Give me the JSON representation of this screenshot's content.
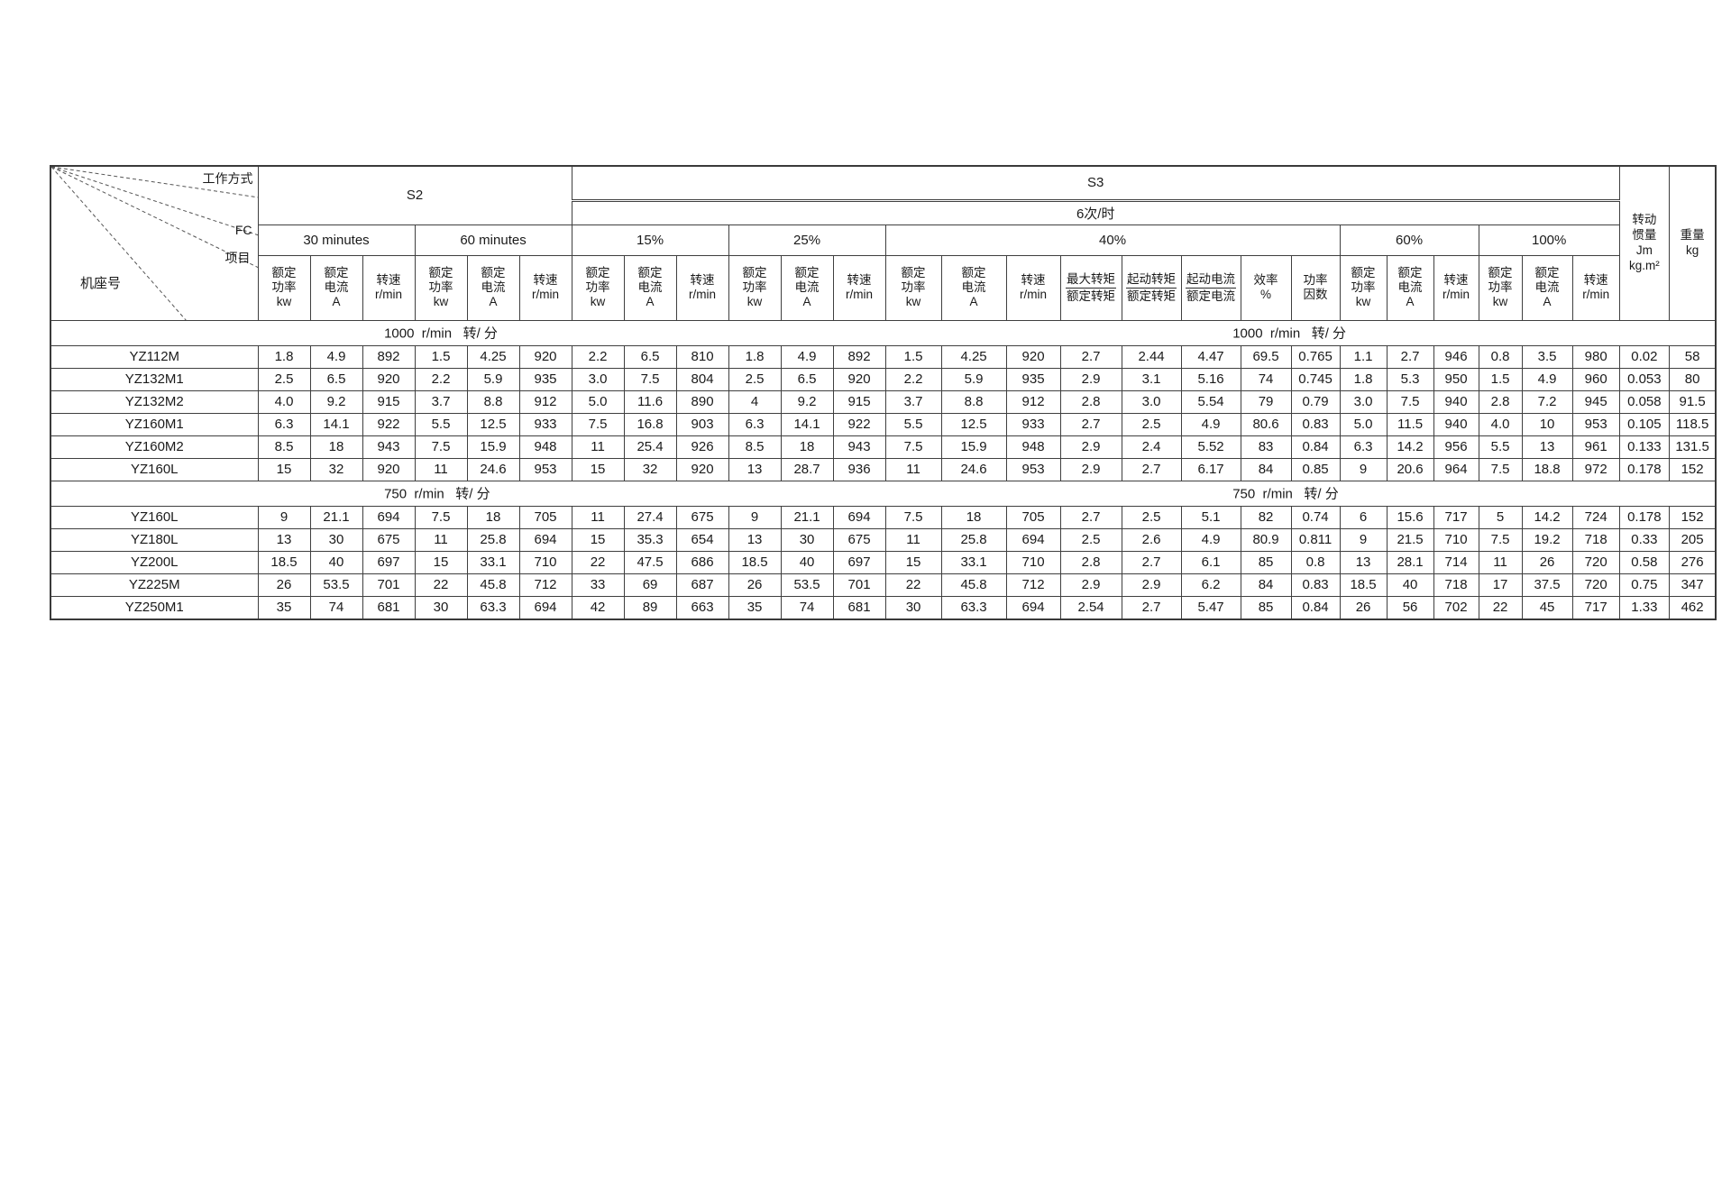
{
  "table": {
    "corner": {
      "work_mode": "工作方式",
      "fc": "FC",
      "item": "项目",
      "frame_no": "机座号"
    },
    "groups": {
      "s2": "S2",
      "s3": "S3",
      "s3_sub": "6次/时",
      "s2_30": "30  minutes",
      "s2_60": "60  minutes",
      "p15": "15%",
      "p25": "25%",
      "p40": "40%",
      "p60": "60%",
      "p100": "100%"
    },
    "col_headers": {
      "power": [
        "额定",
        "功率",
        "kw"
      ],
      "current": [
        "额定",
        "电流",
        "A"
      ],
      "speed": [
        "转速",
        "r/min"
      ],
      "tmax": {
        "num": "最大转矩",
        "den": "额定转矩"
      },
      "tstart": {
        "num": "起动转矩",
        "den": "额定转矩"
      },
      "istart": {
        "num": "起动电流",
        "den": "额定电流"
      },
      "eff": [
        "效率",
        "%"
      ],
      "pf": [
        "功率",
        "因数"
      ],
      "inertia": [
        "转动",
        "惯量",
        "Jm",
        "kg.m²"
      ],
      "weight": [
        "重量",
        "kg"
      ]
    },
    "sections": [
      {
        "label": "1000  r/min   转/ 分",
        "rows": [
          {
            "model": "YZ112M",
            "values": [
              "1.8",
              "4.9",
              "892",
              "1.5",
              "4.25",
              "920",
              "2.2",
              "6.5",
              "810",
              "1.8",
              "4.9",
              "892",
              "1.5",
              "4.25",
              "920",
              "2.7",
              "2.44",
              "4.47",
              "69.5",
              "0.765",
              "1.1",
              "2.7",
              "946",
              "0.8",
              "3.5",
              "980",
              "0.02",
              "58"
            ]
          },
          {
            "model": "YZ132M1",
            "values": [
              "2.5",
              "6.5",
              "920",
              "2.2",
              "5.9",
              "935",
              "3.0",
              "7.5",
              "804",
              "2.5",
              "6.5",
              "920",
              "2.2",
              "5.9",
              "935",
              "2.9",
              "3.1",
              "5.16",
              "74",
              "0.745",
              "1.8",
              "5.3",
              "950",
              "1.5",
              "4.9",
              "960",
              "0.053",
              "80"
            ]
          },
          {
            "model": "YZ132M2",
            "values": [
              "4.0",
              "9.2",
              "915",
              "3.7",
              "8.8",
              "912",
              "5.0",
              "11.6",
              "890",
              "4",
              "9.2",
              "915",
              "3.7",
              "8.8",
              "912",
              "2.8",
              "3.0",
              "5.54",
              "79",
              "0.79",
              "3.0",
              "7.5",
              "940",
              "2.8",
              "7.2",
              "945",
              "0.058",
              "91.5"
            ]
          },
          {
            "model": "YZ160M1",
            "values": [
              "6.3",
              "14.1",
              "922",
              "5.5",
              "12.5",
              "933",
              "7.5",
              "16.8",
              "903",
              "6.3",
              "14.1",
              "922",
              "5.5",
              "12.5",
              "933",
              "2.7",
              "2.5",
              "4.9",
              "80.6",
              "0.83",
              "5.0",
              "11.5",
              "940",
              "4.0",
              "10",
              "953",
              "0.105",
              "118.5"
            ]
          },
          {
            "model": "YZ160M2",
            "values": [
              "8.5",
              "18",
              "943",
              "7.5",
              "15.9",
              "948",
              "11",
              "25.4",
              "926",
              "8.5",
              "18",
              "943",
              "7.5",
              "15.9",
              "948",
              "2.9",
              "2.4",
              "5.52",
              "83",
              "0.84",
              "6.3",
              "14.2",
              "956",
              "5.5",
              "13",
              "961",
              "0.133",
              "131.5"
            ]
          },
          {
            "model": "YZ160L",
            "values": [
              "15",
              "32",
              "920",
              "11",
              "24.6",
              "953",
              "15",
              "32",
              "920",
              "13",
              "28.7",
              "936",
              "11",
              "24.6",
              "953",
              "2.9",
              "2.7",
              "6.17",
              "84",
              "0.85",
              "9",
              "20.6",
              "964",
              "7.5",
              "18.8",
              "972",
              "0.178",
              "152"
            ]
          }
        ]
      },
      {
        "label": "750  r/min   转/ 分",
        "rows": [
          {
            "model": "YZ160L",
            "values": [
              "9",
              "21.1",
              "694",
              "7.5",
              "18",
              "705",
              "11",
              "27.4",
              "675",
              "9",
              "21.1",
              "694",
              "7.5",
              "18",
              "705",
              "2.7",
              "2.5",
              "5.1",
              "82",
              "0.74",
              "6",
              "15.6",
              "717",
              "5",
              "14.2",
              "724",
              "0.178",
              "152"
            ]
          },
          {
            "model": "YZ180L",
            "values": [
              "13",
              "30",
              "675",
              "11",
              "25.8",
              "694",
              "15",
              "35.3",
              "654",
              "13",
              "30",
              "675",
              "11",
              "25.8",
              "694",
              "2.5",
              "2.6",
              "4.9",
              "80.9",
              "0.811",
              "9",
              "21.5",
              "710",
              "7.5",
              "19.2",
              "718",
              "0.33",
              "205"
            ]
          },
          {
            "model": "YZ200L",
            "values": [
              "18.5",
              "40",
              "697",
              "15",
              "33.1",
              "710",
              "22",
              "47.5",
              "686",
              "18.5",
              "40",
              "697",
              "15",
              "33.1",
              "710",
              "2.8",
              "2.7",
              "6.1",
              "85",
              "0.8",
              "13",
              "28.1",
              "714",
              "11",
              "26",
              "720",
              "0.58",
              "276"
            ]
          },
          {
            "model": "YZ225M",
            "values": [
              "26",
              "53.5",
              "701",
              "22",
              "45.8",
              "712",
              "33",
              "69",
              "687",
              "26",
              "53.5",
              "701",
              "22",
              "45.8",
              "712",
              "2.9",
              "2.9",
              "6.2",
              "84",
              "0.83",
              "18.5",
              "40",
              "718",
              "17",
              "37.5",
              "720",
              "0.75",
              "347"
            ]
          },
          {
            "model": "YZ250M1",
            "values": [
              "35",
              "74",
              "681",
              "30",
              "63.3",
              "694",
              "42",
              "89",
              "663",
              "35",
              "74",
              "681",
              "30",
              "63.3",
              "694",
              "2.54",
              "2.7",
              "5.47",
              "85",
              "0.84",
              "26",
              "56",
              "702",
              "22",
              "45",
              "717",
              "1.33",
              "462"
            ]
          }
        ]
      }
    ]
  }
}
